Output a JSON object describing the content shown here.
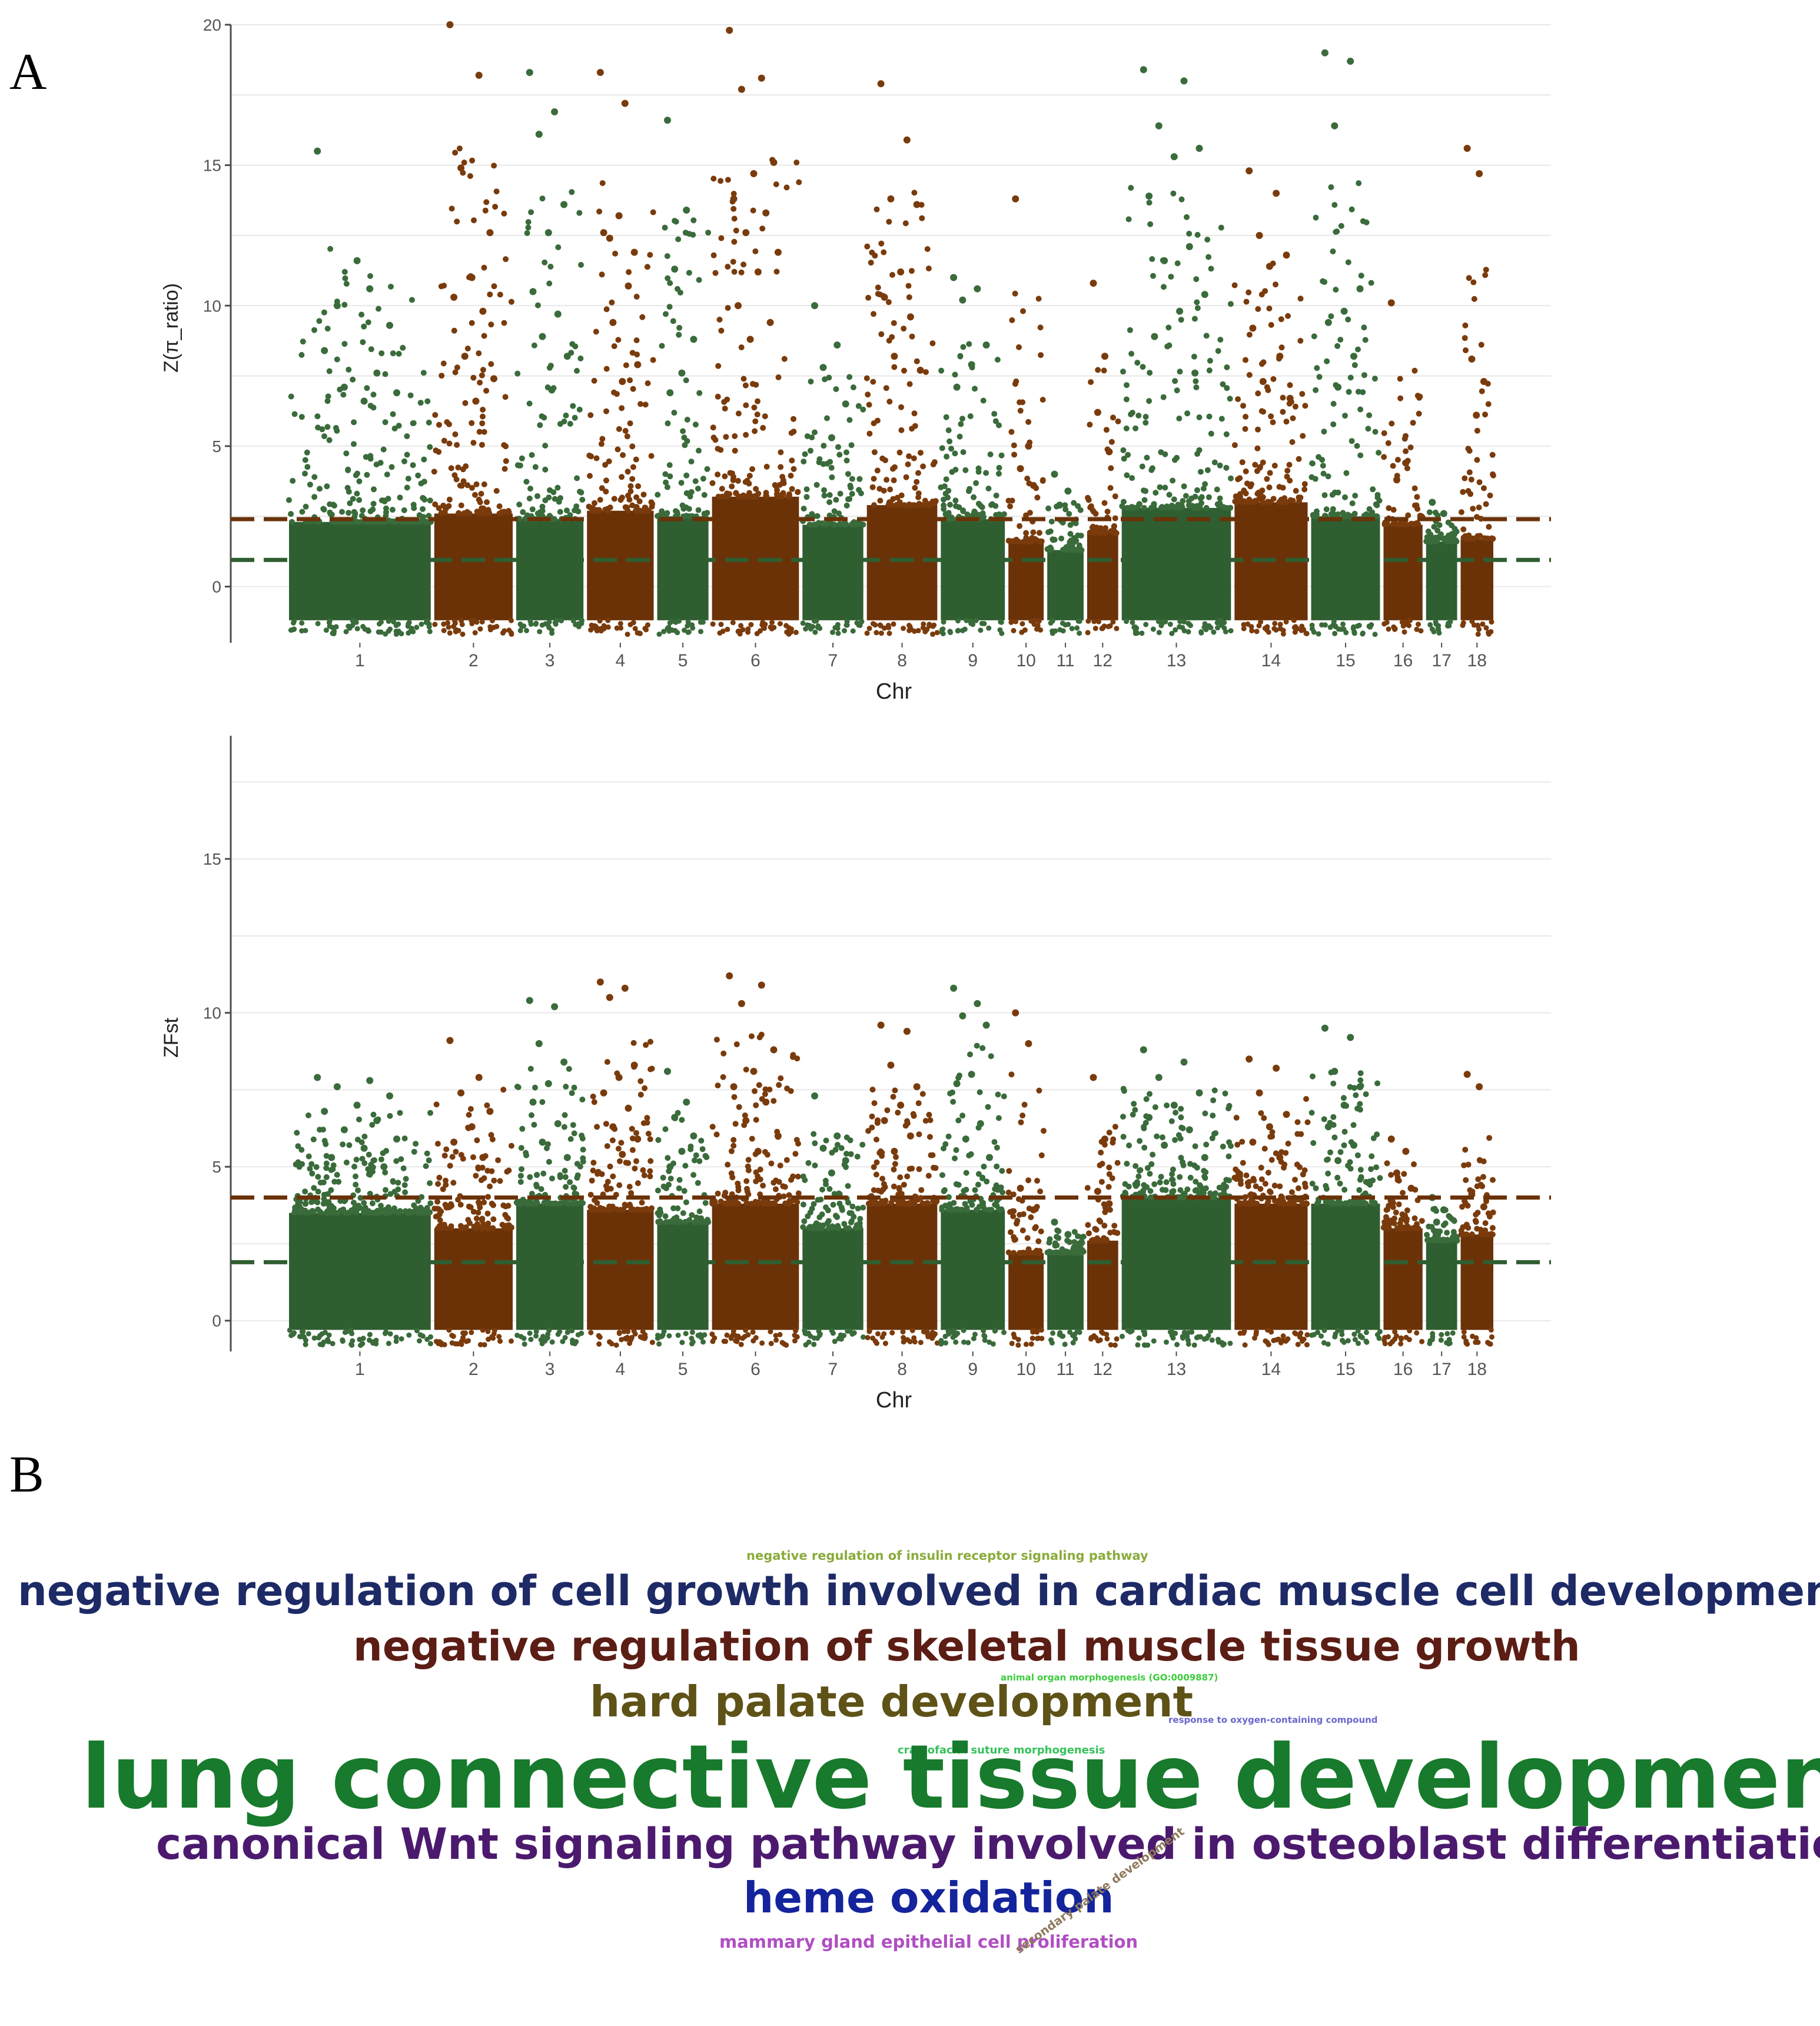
{
  "panel_labels": {
    "a": "A",
    "b": "B"
  },
  "colors": {
    "green": "#3a6b3b",
    "brown": "#7a3b0c",
    "green_dark": "#2f5e31",
    "brown_dark": "#6b3208",
    "grid": "#e8e8e8",
    "axis": "#4d4d4d"
  },
  "chart_data": [
    {
      "type": "scatter",
      "name": "manhattan-pi-ratio",
      "title": "",
      "xlabel": "Chr",
      "ylabel": "Z(π_ratio)",
      "ylim": [
        -2,
        20
      ],
      "yticks": [
        0,
        5,
        10,
        15,
        20
      ],
      "grid": true,
      "thresholds": [
        {
          "value": 2.4,
          "color": "brown"
        },
        {
          "value": 0.95,
          "color": "green"
        }
      ],
      "chromosomes": [
        {
          "label": "1",
          "start": 0,
          "end": 273,
          "base_high": 2.3,
          "max": 15.5,
          "peaks": [
            15.5,
            10.6,
            10.0,
            9.3,
            11.6,
            8.4,
            7.6,
            7.1,
            6.9,
            6.6
          ]
        },
        {
          "label": "2",
          "start": 273,
          "end": 427,
          "base_high": 2.6,
          "max": 20.0,
          "peaks": [
            20.0,
            18.2,
            14.9,
            12.6,
            11.0,
            10.3,
            9.8,
            8.2,
            7.4,
            6.6
          ]
        },
        {
          "label": "3",
          "start": 427,
          "end": 560,
          "base_high": 2.4,
          "max": 18.3,
          "peaks": [
            18.3,
            16.9,
            16.1,
            13.6,
            12.6,
            10.5,
            9.7,
            8.9,
            8.2,
            7.0
          ]
        },
        {
          "label": "4",
          "start": 560,
          "end": 692,
          "base_high": 2.7,
          "max": 18.3,
          "peaks": [
            18.3,
            17.2,
            12.4,
            11.9,
            13.2,
            12.6,
            10.7,
            9.4,
            7.9,
            7.3
          ]
        },
        {
          "label": "5",
          "start": 692,
          "end": 795,
          "base_high": 2.5,
          "max": 16.6,
          "peaks": [
            16.6,
            13.4,
            11.3,
            8.8,
            7.6,
            6.9
          ]
        },
        {
          "label": "6",
          "start": 795,
          "end": 965,
          "base_high": 3.2,
          "max": 19.8,
          "peaks": [
            19.8,
            18.1,
            17.7,
            15.1,
            14.7,
            13.8,
            13.3,
            12.6,
            11.9,
            11.2,
            10.0,
            9.4,
            8.8
          ]
        },
        {
          "label": "7",
          "start": 965,
          "end": 1086,
          "base_high": 2.2,
          "max": 10.0,
          "peaks": [
            10.0,
            8.6,
            7.8,
            6.5,
            5.3
          ]
        },
        {
          "label": "8",
          "start": 1086,
          "end": 1225,
          "base_high": 2.9,
          "max": 17.9,
          "peaks": [
            17.9,
            15.9,
            13.8,
            13.6,
            11.2,
            10.3,
            9.6,
            8.2,
            7.7
          ]
        },
        {
          "label": "9",
          "start": 1225,
          "end": 1352,
          "base_high": 2.4,
          "max": 11.0,
          "peaks": [
            11.0,
            10.6,
            10.2,
            8.6,
            7.9,
            7.1
          ]
        },
        {
          "label": "10",
          "start": 1352,
          "end": 1425,
          "base_high": 1.6,
          "max": 13.8,
          "peaks": [
            13.8,
            5.0,
            4.2,
            3.6
          ]
        },
        {
          "label": "11",
          "start": 1425,
          "end": 1500,
          "base_high": 1.3,
          "max": 4.0,
          "peaks": [
            4.0,
            3.4,
            2.9
          ]
        },
        {
          "label": "12",
          "start": 1500,
          "end": 1565,
          "base_high": 1.9,
          "max": 10.8,
          "peaks": [
            10.8,
            8.2,
            6.2,
            4.8
          ]
        },
        {
          "label": "13",
          "start": 1565,
          "end": 1777,
          "base_high": 2.8,
          "max": 18.4,
          "peaks": [
            18.4,
            18.0,
            16.4,
            15.6,
            15.3,
            13.9,
            12.1,
            11.6,
            10.4,
            9.8,
            8.9,
            7.6
          ]
        },
        {
          "label": "14",
          "start": 1777,
          "end": 1921,
          "base_high": 3.0,
          "max": 14.8,
          "peaks": [
            14.8,
            14.0,
            12.5,
            11.8,
            11.4,
            9.2,
            8.2,
            7.3,
            6.7
          ]
        },
        {
          "label": "15",
          "start": 1921,
          "end": 2057,
          "base_high": 2.5,
          "max": 19.0,
          "peaks": [
            19.0,
            18.7,
            16.4,
            10.6,
            9.8,
            9.4,
            8.2,
            7.1
          ]
        },
        {
          "label": "16",
          "start": 2057,
          "end": 2137,
          "base_high": 2.2,
          "max": 10.1,
          "peaks": [
            10.1,
            4.4,
            3.8
          ]
        },
        {
          "label": "17",
          "start": 2137,
          "end": 2202,
          "base_high": 1.6,
          "max": 3.0,
          "peaks": [
            3.0,
            2.6
          ]
        },
        {
          "label": "18",
          "start": 2202,
          "end": 2270,
          "base_high": 1.7,
          "max": 15.6,
          "peaks": [
            15.6,
            14.7,
            8.1,
            7.3,
            6.1
          ]
        }
      ]
    },
    {
      "type": "scatter",
      "name": "manhattan-zfst",
      "title": "",
      "xlabel": "Chr",
      "ylabel": "ZFst",
      "ylim": [
        -1,
        19
      ],
      "yticks": [
        0,
        5,
        10,
        15
      ],
      "grid": true,
      "thresholds": [
        {
          "value": 4.0,
          "color": "brown"
        },
        {
          "value": 1.9,
          "color": "green"
        }
      ],
      "chromosomes": [
        {
          "label": "1",
          "start": 0,
          "end": 273,
          "base_high": 3.5,
          "max": 7.9,
          "peaks": [
            7.9,
            7.8,
            7.6,
            7.3,
            7.0,
            6.8,
            6.5,
            6.2,
            5.9,
            5.6,
            5.3,
            5.0
          ]
        },
        {
          "label": "2",
          "start": 273,
          "end": 427,
          "base_high": 3.0,
          "max": 9.1,
          "peaks": [
            9.1,
            7.9,
            7.4,
            6.8,
            6.3,
            5.8,
            5.3
          ]
        },
        {
          "label": "3",
          "start": 427,
          "end": 560,
          "base_high": 3.8,
          "max": 10.4,
          "peaks": [
            10.4,
            10.2,
            9.0,
            8.4,
            7.7,
            7.1,
            6.4,
            5.8,
            5.3
          ]
        },
        {
          "label": "4",
          "start": 560,
          "end": 692,
          "base_high": 3.6,
          "max": 11.0,
          "peaks": [
            11.0,
            10.8,
            10.5,
            8.3,
            7.9,
            7.4,
            6.9,
            6.3,
            5.9,
            5.4
          ]
        },
        {
          "label": "5",
          "start": 692,
          "end": 795,
          "base_high": 3.2,
          "max": 8.1,
          "peaks": [
            8.1,
            7.1,
            6.6,
            6.0,
            5.5,
            5.0
          ]
        },
        {
          "label": "6",
          "start": 795,
          "end": 965,
          "base_high": 3.8,
          "max": 11.2,
          "peaks": [
            11.2,
            10.9,
            10.3,
            8.8,
            8.1,
            7.6,
            7.1,
            6.5,
            6.0,
            5.5
          ]
        },
        {
          "label": "7",
          "start": 965,
          "end": 1086,
          "base_high": 3.0,
          "max": 7.3,
          "peaks": [
            7.3,
            6.0,
            5.6,
            5.2,
            4.8
          ]
        },
        {
          "label": "8",
          "start": 1086,
          "end": 1225,
          "base_high": 3.8,
          "max": 9.6,
          "peaks": [
            9.6,
            9.4,
            8.3,
            7.6,
            7.0,
            6.5,
            6.0,
            5.5
          ]
        },
        {
          "label": "9",
          "start": 1225,
          "end": 1352,
          "base_high": 3.6,
          "max": 10.8,
          "peaks": [
            10.8,
            10.3,
            9.9,
            9.6,
            8.0,
            7.7,
            6.4,
            5.9,
            5.3
          ]
        },
        {
          "label": "10",
          "start": 1352,
          "end": 1425,
          "base_high": 2.2,
          "max": 10.0,
          "peaks": [
            10.0,
            9.0,
            4.3,
            3.6
          ]
        },
        {
          "label": "11",
          "start": 1425,
          "end": 1500,
          "base_high": 2.2,
          "max": 3.2,
          "peaks": [
            3.2,
            2.8
          ]
        },
        {
          "label": "12",
          "start": 1500,
          "end": 1565,
          "base_high": 2.6,
          "max": 7.9,
          "peaks": [
            7.9,
            5.9,
            4.2,
            3.8
          ]
        },
        {
          "label": "13",
          "start": 1565,
          "end": 1777,
          "base_high": 4.0,
          "max": 8.8,
          "peaks": [
            8.8,
            8.4,
            7.9,
            7.4,
            7.0,
            6.6,
            6.2,
            5.7,
            5.3
          ]
        },
        {
          "label": "14",
          "start": 1777,
          "end": 1921,
          "base_high": 3.8,
          "max": 8.5,
          "peaks": [
            8.5,
            8.2,
            7.4,
            6.7,
            6.3,
            5.8,
            5.3
          ]
        },
        {
          "label": "15",
          "start": 1921,
          "end": 2057,
          "base_high": 3.8,
          "max": 9.5,
          "peaks": [
            9.5,
            9.2,
            8.1,
            7.6,
            7.0,
            6.3,
            5.7,
            5.2
          ]
        },
        {
          "label": "16",
          "start": 2057,
          "end": 2137,
          "base_high": 3.0,
          "max": 5.9,
          "peaks": [
            5.9,
            5.5,
            4.8,
            4.3
          ]
        },
        {
          "label": "17",
          "start": 2137,
          "end": 2202,
          "base_high": 2.6,
          "max": 4.0,
          "peaks": [
            4.0,
            3.6,
            3.2
          ]
        },
        {
          "label": "18",
          "start": 2202,
          "end": 2270,
          "base_high": 2.8,
          "max": 8.0,
          "peaks": [
            8.0,
            7.6,
            4.1,
            3.7
          ]
        }
      ]
    },
    {
      "type": "wordcloud",
      "name": "go-term-wordcloud",
      "words": [
        {
          "text": "negative regulation of insulin receptor signaling pathway",
          "weight": 1,
          "color": "#8aab3a"
        },
        {
          "text": "negative regulation of cell growth involved in cardiac muscle cell development",
          "weight": 5,
          "color": "#1d2a66"
        },
        {
          "text": "negative regulation of skeletal muscle tissue growth",
          "weight": 5,
          "color": "#5b1d14"
        },
        {
          "text": "hard palate development",
          "weight": 5,
          "color": "#5e5217"
        },
        {
          "text": "animal organ morphogenesis (GO:0009887)",
          "weight": 1,
          "color": "#3bcc3b"
        },
        {
          "text": "response to oxygen-containing compound",
          "weight": 1,
          "color": "#6a66cc"
        },
        {
          "text": "craniofacial suture morphogenesis",
          "weight": 1,
          "color": "#35c25a"
        },
        {
          "text": "lung connective tissue development",
          "weight": 10,
          "color": "#177a2c"
        },
        {
          "text": "canonical Wnt signaling pathway involved in osteoblast differentiation",
          "weight": 5,
          "color": "#4b1a6e"
        },
        {
          "text": "heme oxidation",
          "weight": 5,
          "color": "#14249c"
        },
        {
          "text": "mammary gland epithelial cell proliferation",
          "weight": 2,
          "color": "#b04fc2"
        },
        {
          "text": "secondary palate development",
          "weight": 1,
          "color": "#8e7a5e"
        }
      ]
    }
  ]
}
